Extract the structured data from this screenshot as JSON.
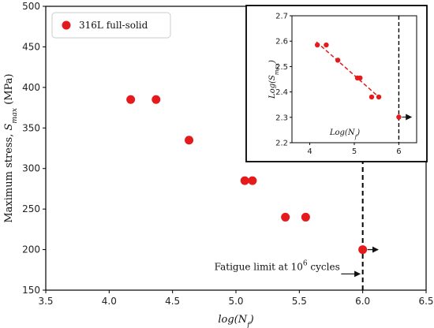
{
  "chart_data": [
    {
      "type": "scatter",
      "xlabel": "log(N_f)",
      "ylabel": "Maximum stress, S_max (MPa)",
      "xlim": [
        3.5,
        6.5
      ],
      "ylim": [
        150,
        500
      ],
      "xticks": [
        "3.5",
        "4.0",
        "4.5",
        "5.0",
        "5.5",
        "6.0",
        "6.5"
      ],
      "yticks": [
        "150",
        "200",
        "250",
        "300",
        "350",
        "400",
        "450",
        "500"
      ],
      "series": [
        {
          "name": "316L full-solid",
          "color": "#e41a1c",
          "x": [
            4.17,
            4.37,
            4.63,
            5.07,
            5.13,
            5.39,
            5.55,
            6.0
          ],
          "y": [
            385,
            385,
            335,
            285,
            285,
            240,
            240,
            200
          ]
        }
      ],
      "legend_position": "top-left",
      "runout": {
        "x": 6.0,
        "y": 200,
        "arrow": "right"
      },
      "vline": {
        "x": 6.0,
        "style": "dashed"
      },
      "annotation": {
        "prefix": "Fatigue limit at 10",
        "sup": "6",
        "suffix": " cycles"
      }
    },
    {
      "type": "scatter",
      "position": "inset, top-right",
      "xlabel": "Log(N_f)",
      "ylabel": "Log(S_max)",
      "xlim": [
        3.6,
        6.4
      ],
      "ylim": [
        2.2,
        2.7
      ],
      "xticks": [
        "4",
        "5",
        "6"
      ],
      "yticks": [
        "2.2",
        "2.3",
        "2.4",
        "2.5",
        "2.6",
        "2.7"
      ],
      "points": {
        "x": [
          4.17,
          4.37,
          4.63,
          5.07,
          5.13,
          5.39,
          5.55,
          6.0
        ],
        "y": [
          2.585,
          2.585,
          2.525,
          2.455,
          2.455,
          2.38,
          2.38,
          2.301
        ]
      },
      "fit_line": {
        "x": [
          4.15,
          5.57
        ],
        "y": [
          2.597,
          2.377
        ],
        "style": "dashed",
        "color": "#e41a1c"
      },
      "runout": {
        "x": 6.0,
        "y": 2.301,
        "arrow": "right"
      },
      "vline": {
        "x": 6.0,
        "style": "dashed"
      }
    }
  ]
}
